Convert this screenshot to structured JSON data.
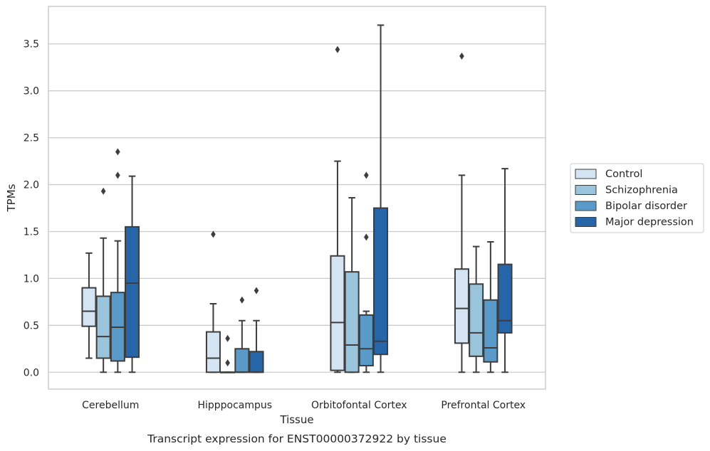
{
  "chart_data": {
    "type": "box",
    "xlabel": "Tissue",
    "ylabel": "TPMs",
    "ylim": [
      -0.18,
      3.9
    ],
    "yticks": [
      0.0,
      0.5,
      1.0,
      1.5,
      2.0,
      2.5,
      3.0,
      3.5
    ],
    "ytick_labels": [
      "0.0",
      "0.5",
      "1.0",
      "1.5",
      "2.0",
      "2.5",
      "3.0",
      "3.5"
    ],
    "grid": "horizontal",
    "legend_position": "right",
    "categories": [
      "Cerebellum",
      "Hipppocampus",
      "Orbitofontal Cortex",
      "Prefrontal Cortex"
    ],
    "caption": "Transcript expression for ENST00000372922 by tissue",
    "series": [
      {
        "name": "Control",
        "color": "#d4e4f3",
        "boxes": [
          {
            "whislo": 0.15,
            "q1": 0.49,
            "med": 0.65,
            "q3": 0.9,
            "whishi": 1.27,
            "fliers": []
          },
          {
            "whislo": 0.0,
            "q1": 0.0,
            "med": 0.15,
            "q3": 0.43,
            "whishi": 0.73,
            "fliers": [
              1.47
            ]
          },
          {
            "whislo": 0.0,
            "q1": 0.02,
            "med": 0.53,
            "q3": 1.24,
            "whishi": 2.25,
            "fliers": [
              3.44
            ]
          },
          {
            "whislo": 0.0,
            "q1": 0.31,
            "med": 0.68,
            "q3": 1.1,
            "whishi": 2.1,
            "fliers": [
              3.37
            ]
          }
        ]
      },
      {
        "name": "Schizophrenia",
        "color": "#9ac3dc",
        "boxes": [
          {
            "whislo": 0.0,
            "q1": 0.15,
            "med": 0.38,
            "q3": 0.81,
            "whishi": 1.43,
            "fliers": [
              1.93
            ]
          },
          {
            "whislo": 0.0,
            "q1": 0.0,
            "med": 0.0,
            "q3": 0.0,
            "whishi": 0.0,
            "fliers": [
              0.1,
              0.36
            ]
          },
          {
            "whislo": 0.0,
            "q1": 0.0,
            "med": 0.29,
            "q3": 1.07,
            "whishi": 1.86,
            "fliers": []
          },
          {
            "whislo": 0.0,
            "q1": 0.17,
            "med": 0.42,
            "q3": 0.94,
            "whishi": 1.34,
            "fliers": []
          }
        ]
      },
      {
        "name": "Bipolar disorder",
        "color": "#5a9ac8",
        "boxes": [
          {
            "whislo": 0.0,
            "q1": 0.12,
            "med": 0.48,
            "q3": 0.85,
            "whishi": 1.4,
            "fliers": [
              2.1,
              2.35
            ]
          },
          {
            "whislo": 0.0,
            "q1": 0.0,
            "med": 0.0,
            "q3": 0.25,
            "whishi": 0.55,
            "fliers": [
              0.77
            ]
          },
          {
            "whislo": 0.0,
            "q1": 0.07,
            "med": 0.25,
            "q3": 0.61,
            "whishi": 0.65,
            "fliers": [
              1.44,
              2.1
            ]
          },
          {
            "whislo": 0.0,
            "q1": 0.11,
            "med": 0.26,
            "q3": 0.77,
            "whishi": 1.39,
            "fliers": []
          }
        ]
      },
      {
        "name": "Major depression",
        "color": "#2565a8",
        "boxes": [
          {
            "whislo": 0.0,
            "q1": 0.16,
            "med": 0.95,
            "q3": 1.55,
            "whishi": 2.09,
            "fliers": []
          },
          {
            "whislo": 0.0,
            "q1": 0.0,
            "med": 0.0,
            "q3": 0.22,
            "whishi": 0.55,
            "fliers": [
              0.87
            ]
          },
          {
            "whislo": 0.0,
            "q1": 0.19,
            "med": 0.33,
            "q3": 1.75,
            "whishi": 3.7,
            "fliers": []
          },
          {
            "whislo": 0.0,
            "q1": 0.42,
            "med": 0.55,
            "q3": 1.15,
            "whishi": 2.17,
            "fliers": []
          }
        ]
      }
    ]
  }
}
